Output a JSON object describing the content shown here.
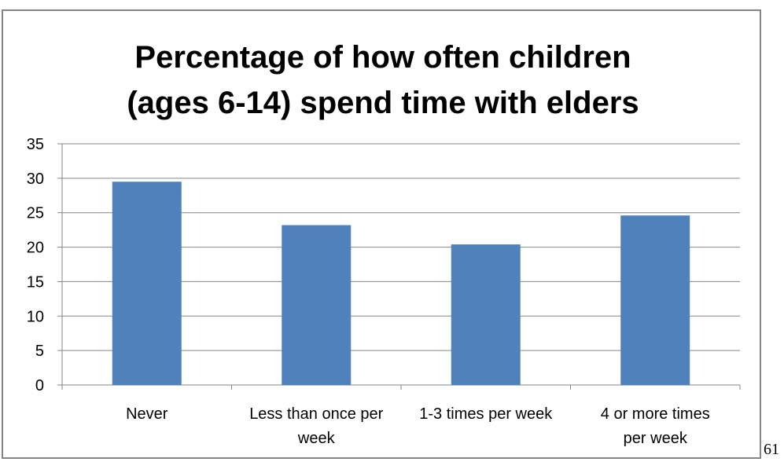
{
  "page": {
    "number": "61"
  },
  "chart_data": {
    "type": "bar",
    "title_lines": [
      "Percentage of how often children",
      "(ages 6-14) spend time with elders"
    ],
    "categories": [
      [
        "Never"
      ],
      [
        "Less than once per",
        "week"
      ],
      [
        "1-3 times per week"
      ],
      [
        "4 or more times",
        "per week"
      ]
    ],
    "values": [
      29.5,
      23.2,
      20.4,
      24.6
    ],
    "ylim": [
      0,
      35
    ],
    "yticks": [
      0,
      5,
      10,
      15,
      20,
      25,
      30,
      35
    ],
    "xlabel": "",
    "ylabel": "",
    "grid": true,
    "legend": "none",
    "colors": {
      "bar": "#4F81BD",
      "grid": "#868686",
      "axis": "#868686",
      "text": "#000000"
    }
  }
}
